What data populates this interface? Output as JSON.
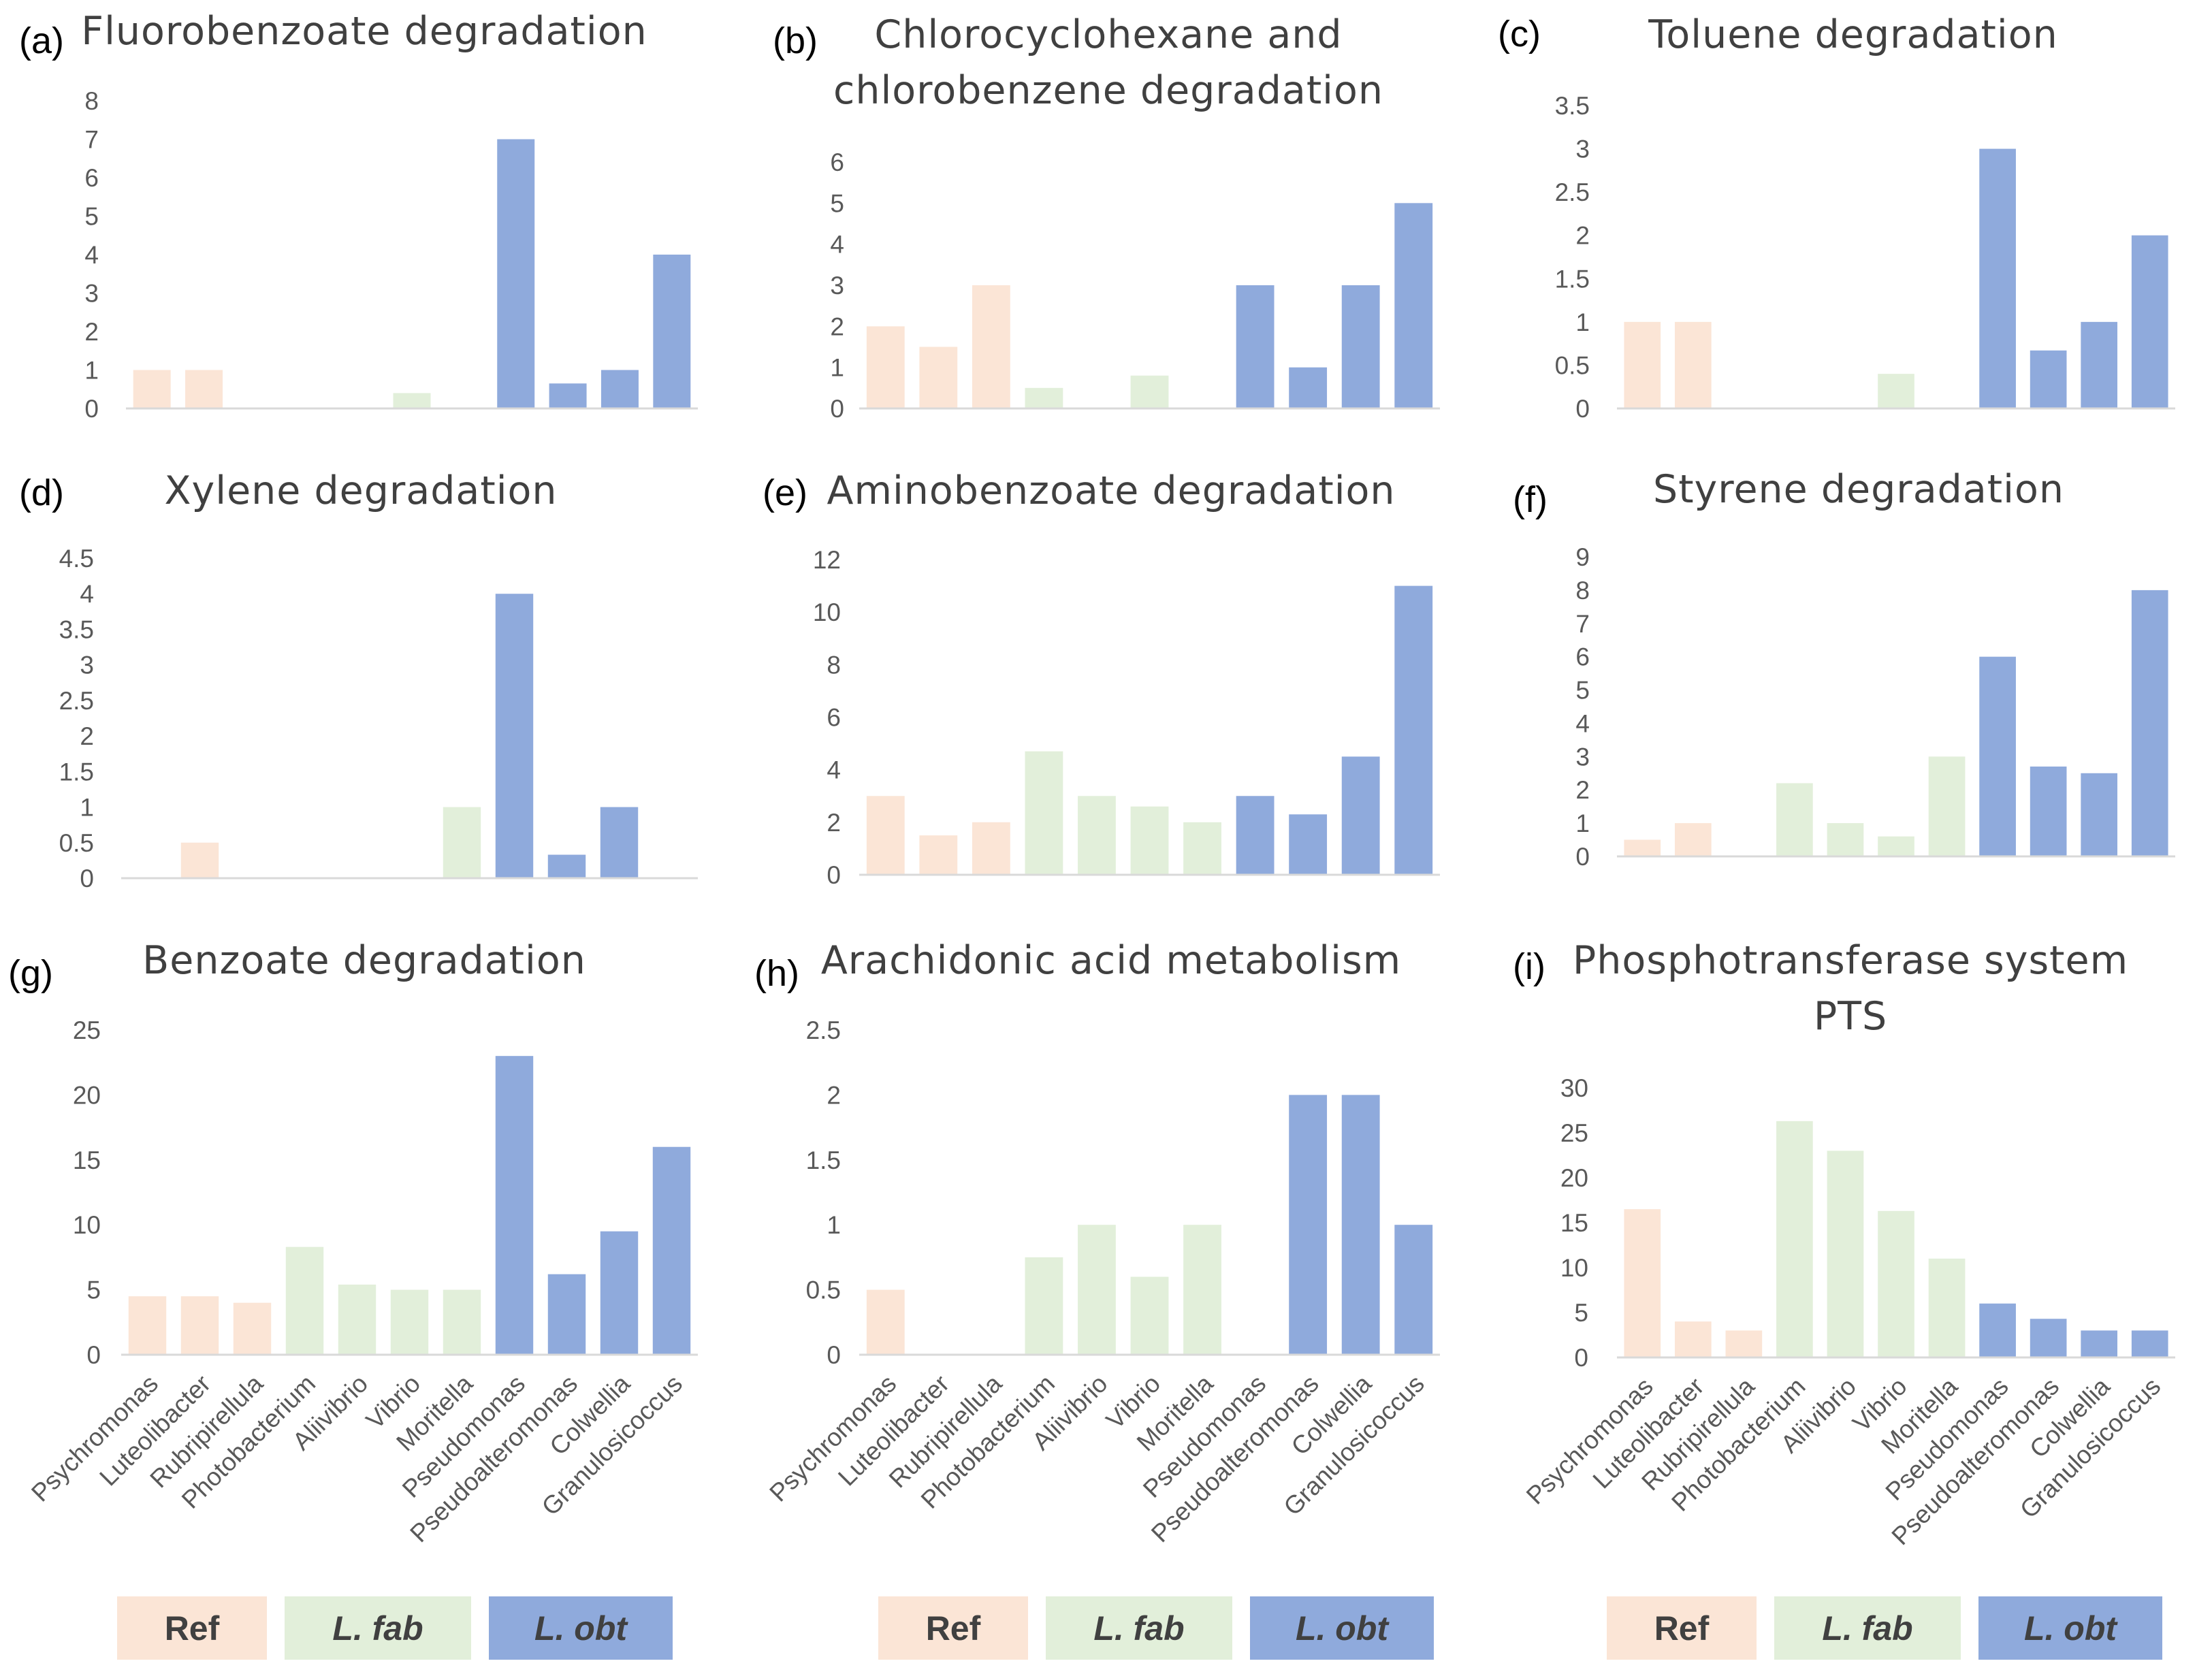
{
  "colors": {
    "Ref": "#fbe5d6",
    "L. fab": "#e2efda",
    "L. obt": "#8faadc"
  },
  "legend": {
    "items": [
      {
        "label": "Ref",
        "italic": false
      },
      {
        "label": "L. fab",
        "italic": true
      },
      {
        "label": "L. obt",
        "italic": true
      }
    ]
  },
  "chart_data": [
    {
      "panel": "(a)",
      "type": "bar",
      "title": [
        "Fluorobenzoate degradation"
      ],
      "categories": [
        "Psychromonas",
        "Luteolibacter",
        "Rubripirellula",
        "Photobacterium",
        "Aliivibrio",
        "Vibrio",
        "Moritella",
        "Pseudomonas",
        "Pseudoalteromonas",
        "Colwellia",
        "Granulosicoccus"
      ],
      "groups": [
        "Ref",
        "Ref",
        "Ref",
        "L. fab",
        "L. fab",
        "L. fab",
        "L. fab",
        "L. obt",
        "L. obt",
        "L. obt",
        "L. obt"
      ],
      "values": [
        1,
        1,
        0,
        0,
        0,
        0.4,
        0,
        7,
        0.65,
        1,
        4
      ],
      "ylim": [
        0,
        8
      ],
      "yticks": [
        "0",
        "1",
        "2",
        "3",
        "4",
        "5",
        "6",
        "7",
        "8"
      ],
      "show_xticks": false
    },
    {
      "panel": "(b)",
      "type": "bar",
      "title": [
        "Chlorocyclohexane and",
        "chlorobenzene degradation"
      ],
      "categories": [
        "Psychromonas",
        "Luteolibacter",
        "Rubripirellula",
        "Photobacterium",
        "Aliivibrio",
        "Vibrio",
        "Moritella",
        "Pseudomonas",
        "Pseudoalteromonas",
        "Colwellia",
        "Granulosicoccus"
      ],
      "groups": [
        "Ref",
        "Ref",
        "Ref",
        "L. fab",
        "L. fab",
        "L. fab",
        "L. fab",
        "L. obt",
        "L. obt",
        "L. obt",
        "L. obt"
      ],
      "values": [
        2,
        1.5,
        3,
        0.5,
        0,
        0.8,
        0,
        3,
        1,
        3,
        5
      ],
      "ylim": [
        0,
        6
      ],
      "yticks": [
        "0",
        "1",
        "2",
        "3",
        "4",
        "5",
        "6"
      ],
      "show_xticks": false
    },
    {
      "panel": "(c)",
      "type": "bar",
      "title": [
        "Toluene degradation"
      ],
      "categories": [
        "Psychromonas",
        "Luteolibacter",
        "Rubripirellula",
        "Photobacterium",
        "Aliivibrio",
        "Vibrio",
        "Moritella",
        "Pseudomonas",
        "Pseudoalteromonas",
        "Colwellia",
        "Granulosicoccus"
      ],
      "groups": [
        "Ref",
        "Ref",
        "Ref",
        "L. fab",
        "L. fab",
        "L. fab",
        "L. fab",
        "L. obt",
        "L. obt",
        "L. obt",
        "L. obt"
      ],
      "values": [
        1,
        1,
        0,
        0,
        0,
        0.4,
        0,
        3,
        0.67,
        1,
        2
      ],
      "ylim": [
        0,
        3.5
      ],
      "yticks": [
        "0",
        "0.5",
        "1",
        "1.5",
        "2",
        "2.5",
        "3",
        "3.5"
      ],
      "show_xticks": false
    },
    {
      "panel": "(d)",
      "type": "bar",
      "title": [
        "Xylene degradation"
      ],
      "categories": [
        "Psychromonas",
        "Luteolibacter",
        "Rubripirellula",
        "Photobacterium",
        "Aliivibrio",
        "Vibrio",
        "Moritella",
        "Pseudomonas",
        "Pseudoalteromonas",
        "Colwellia",
        "Granulosicoccus"
      ],
      "groups": [
        "Ref",
        "Ref",
        "Ref",
        "L. fab",
        "L. fab",
        "L. fab",
        "L. fab",
        "L. obt",
        "L. obt",
        "L. obt",
        "L. obt"
      ],
      "values": [
        0,
        0.5,
        0,
        0,
        0,
        0,
        1,
        4,
        0.33,
        1,
        0
      ],
      "ylim": [
        0,
        4.5
      ],
      "yticks": [
        "0",
        "0.5",
        "1",
        "1.5",
        "2",
        "2.5",
        "3",
        "3.5",
        "4",
        "4.5"
      ],
      "show_xticks": false
    },
    {
      "panel": "(e)",
      "type": "bar",
      "title": [
        "Aminobenzoate degradation"
      ],
      "categories": [
        "Psychromonas",
        "Luteolibacter",
        "Rubripirellula",
        "Photobacterium",
        "Aliivibrio",
        "Vibrio",
        "Moritella",
        "Pseudomonas",
        "Pseudoalteromonas",
        "Colwellia",
        "Granulosicoccus"
      ],
      "groups": [
        "Ref",
        "Ref",
        "Ref",
        "L. fab",
        "L. fab",
        "L. fab",
        "L. fab",
        "L. obt",
        "L. obt",
        "L. obt",
        "L. obt"
      ],
      "values": [
        3,
        1.5,
        2,
        4.7,
        3,
        2.6,
        2,
        3,
        2.3,
        4.5,
        11
      ],
      "ylim": [
        0,
        12
      ],
      "yticks": [
        "0",
        "2",
        "4",
        "6",
        "8",
        "10",
        "12"
      ],
      "show_xticks": false
    },
    {
      "panel": "(f)",
      "type": "bar",
      "title": [
        "Styrene degradation"
      ],
      "categories": [
        "Psychromonas",
        "Luteolibacter",
        "Rubripirellula",
        "Photobacterium",
        "Aliivibrio",
        "Vibrio",
        "Moritella",
        "Pseudomonas",
        "Pseudoalteromonas",
        "Colwellia",
        "Granulosicoccus"
      ],
      "groups": [
        "Ref",
        "Ref",
        "Ref",
        "L. fab",
        "L. fab",
        "L. fab",
        "L. fab",
        "L. obt",
        "L. obt",
        "L. obt",
        "L. obt"
      ],
      "values": [
        0.5,
        1,
        0,
        2.2,
        1,
        0.6,
        3,
        6,
        2.7,
        2.5,
        8
      ],
      "ylim": [
        0,
        9
      ],
      "yticks": [
        "0",
        "1",
        "2",
        "3",
        "4",
        "5",
        "6",
        "7",
        "8",
        "9"
      ],
      "show_xticks": false
    },
    {
      "panel": "(g)",
      "type": "bar",
      "title": [
        "Benzoate degradation"
      ],
      "categories": [
        "Psychromonas",
        "Luteolibacter",
        "Rubripirellula",
        "Photobacterium",
        "Aliivibrio",
        "Vibrio",
        "Moritella",
        "Pseudomonas",
        "Pseudoalteromonas",
        "Colwellia",
        "Granulosicoccus"
      ],
      "groups": [
        "Ref",
        "Ref",
        "Ref",
        "L. fab",
        "L. fab",
        "L. fab",
        "L. fab",
        "L. obt",
        "L. obt",
        "L. obt",
        "L. obt"
      ],
      "values": [
        4.5,
        4.5,
        4,
        8.3,
        5.4,
        5,
        5,
        23,
        6.2,
        9.5,
        16
      ],
      "ylim": [
        0,
        25
      ],
      "yticks": [
        "0",
        "5",
        "10",
        "15",
        "20",
        "25"
      ],
      "show_xticks": true
    },
    {
      "panel": "(h)",
      "type": "bar",
      "title": [
        "Arachidonic acid metabolism"
      ],
      "categories": [
        "Psychromonas",
        "Luteolibacter",
        "Rubripirellula",
        "Photobacterium",
        "Aliivibrio",
        "Vibrio",
        "Moritella",
        "Pseudomonas",
        "Pseudoalteromonas",
        "Colwellia",
        "Granulosicoccus"
      ],
      "groups": [
        "Ref",
        "Ref",
        "Ref",
        "L. fab",
        "L. fab",
        "L. fab",
        "L. fab",
        "L. obt",
        "L. obt",
        "L. obt",
        "L. obt"
      ],
      "values": [
        0.5,
        0,
        0,
        0.75,
        1,
        0.6,
        1,
        0,
        2,
        2,
        1
      ],
      "ylim": [
        0,
        2.5
      ],
      "yticks": [
        "0",
        "0.5",
        "1",
        "1.5",
        "2",
        "2.5"
      ],
      "show_xticks": true
    },
    {
      "panel": "(i)",
      "type": "bar",
      "title": [
        "Phosphotransferase system",
        "PTS"
      ],
      "categories": [
        "Psychromonas",
        "Luteolibacter",
        "Rubripirellula",
        "Photobacterium",
        "Aliivibrio",
        "Vibrio",
        "Moritella",
        "Pseudomonas",
        "Pseudoalteromonas",
        "Colwellia",
        "Granulosicoccus"
      ],
      "groups": [
        "Ref",
        "Ref",
        "Ref",
        "L. fab",
        "L. fab",
        "L. fab",
        "L. fab",
        "L. obt",
        "L. obt",
        "L. obt",
        "L. obt"
      ],
      "values": [
        16.5,
        4,
        3,
        26.3,
        23,
        16.3,
        11,
        6,
        4.3,
        3,
        3
      ],
      "ylim": [
        0,
        30
      ],
      "yticks": [
        "0",
        "5",
        "10",
        "15",
        "20",
        "25",
        "30"
      ],
      "show_xticks": true
    }
  ]
}
